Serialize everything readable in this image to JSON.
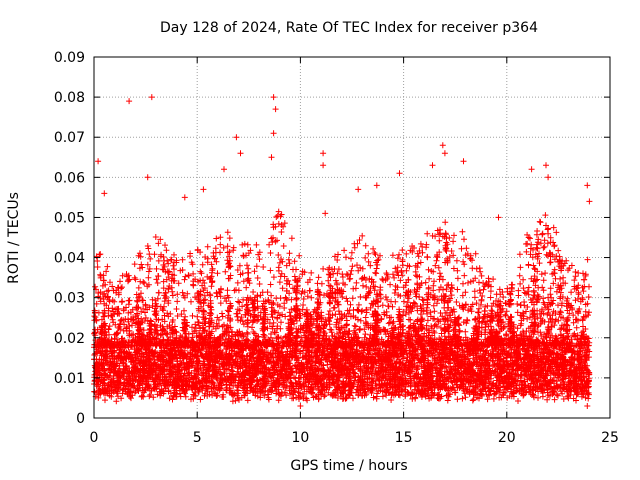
{
  "chart_data": {
    "type": "scatter",
    "title": "Day 128 of 2024, Rate Of TEC Index for receiver p364",
    "xlabel": "GPS time / hours",
    "ylabel": "ROTI / TECUs",
    "xlim": [
      0,
      25
    ],
    "ylim": [
      0,
      0.09
    ],
    "xticks": [
      {
        "value": 0,
        "label": "0"
      },
      {
        "value": 5,
        "label": "5"
      },
      {
        "value": 10,
        "label": "10"
      },
      {
        "value": 15,
        "label": "15"
      },
      {
        "value": 20,
        "label": "20"
      },
      {
        "value": 25,
        "label": "25"
      }
    ],
    "yticks": [
      {
        "value": 0,
        "label": "0"
      },
      {
        "value": 0.01,
        "label": "0.01"
      },
      {
        "value": 0.02,
        "label": "0.02"
      },
      {
        "value": 0.03,
        "label": "0.03"
      },
      {
        "value": 0.04,
        "label": "0.04"
      },
      {
        "value": 0.05,
        "label": "0.05"
      },
      {
        "value": 0.06,
        "label": "0.06"
      },
      {
        "value": 0.07,
        "label": "0.07"
      },
      {
        "value": 0.08,
        "label": "0.08"
      },
      {
        "value": 0.09,
        "label": "0.09"
      }
    ],
    "grid": true,
    "marker": "+",
    "series": [
      {
        "name": "ROTI",
        "color": "#ff0000",
        "x_range": [
          0,
          24
        ],
        "baseline_min": 0.006,
        "baseline_max": 0.018,
        "notable_points": [
          {
            "x": 0.2,
            "y": 0.064
          },
          {
            "x": 0.5,
            "y": 0.056
          },
          {
            "x": 1.7,
            "y": 0.079
          },
          {
            "x": 2.8,
            "y": 0.08
          },
          {
            "x": 2.6,
            "y": 0.06
          },
          {
            "x": 4.4,
            "y": 0.055
          },
          {
            "x": 5.3,
            "y": 0.057
          },
          {
            "x": 6.3,
            "y": 0.062
          },
          {
            "x": 6.9,
            "y": 0.07
          },
          {
            "x": 7.1,
            "y": 0.066
          },
          {
            "x": 8.7,
            "y": 0.08
          },
          {
            "x": 8.8,
            "y": 0.077
          },
          {
            "x": 8.7,
            "y": 0.071
          },
          {
            "x": 8.6,
            "y": 0.065
          },
          {
            "x": 11.1,
            "y": 0.066
          },
          {
            "x": 11.1,
            "y": 0.063
          },
          {
            "x": 11.2,
            "y": 0.051
          },
          {
            "x": 12.8,
            "y": 0.057
          },
          {
            "x": 13.7,
            "y": 0.058
          },
          {
            "x": 14.8,
            "y": 0.061
          },
          {
            "x": 16.4,
            "y": 0.063
          },
          {
            "x": 16.9,
            "y": 0.068
          },
          {
            "x": 17.0,
            "y": 0.066
          },
          {
            "x": 17.9,
            "y": 0.064
          },
          {
            "x": 19.6,
            "y": 0.05
          },
          {
            "x": 21.2,
            "y": 0.062
          },
          {
            "x": 21.9,
            "y": 0.063
          },
          {
            "x": 22.0,
            "y": 0.06
          },
          {
            "x": 23.9,
            "y": 0.058
          },
          {
            "x": 24.0,
            "y": 0.054
          },
          {
            "x": 0.0,
            "y": 0.021
          },
          {
            "x": 10.0,
            "y": 0.003
          },
          {
            "x": 23.9,
            "y": 0.003
          }
        ],
        "activity_profile": [
          {
            "x": 0,
            "peak": 0.045
          },
          {
            "x": 1,
            "peak": 0.034
          },
          {
            "x": 2,
            "peak": 0.04
          },
          {
            "x": 3,
            "peak": 0.046
          },
          {
            "x": 4,
            "peak": 0.04
          },
          {
            "x": 5,
            "peak": 0.042
          },
          {
            "x": 6,
            "peak": 0.045
          },
          {
            "x": 7,
            "peak": 0.048
          },
          {
            "x": 8,
            "peak": 0.045
          },
          {
            "x": 9,
            "peak": 0.052
          },
          {
            "x": 10,
            "peak": 0.04
          },
          {
            "x": 11,
            "peak": 0.038
          },
          {
            "x": 12,
            "peak": 0.042
          },
          {
            "x": 13,
            "peak": 0.046
          },
          {
            "x": 14,
            "peak": 0.04
          },
          {
            "x": 15,
            "peak": 0.042
          },
          {
            "x": 16,
            "peak": 0.046
          },
          {
            "x": 17,
            "peak": 0.05
          },
          {
            "x": 18,
            "peak": 0.046
          },
          {
            "x": 19,
            "peak": 0.036
          },
          {
            "x": 20,
            "peak": 0.032
          },
          {
            "x": 21,
            "peak": 0.046
          },
          {
            "x": 22,
            "peak": 0.052
          },
          {
            "x": 23,
            "peak": 0.038
          },
          {
            "x": 24,
            "peak": 0.04
          }
        ]
      }
    ]
  }
}
